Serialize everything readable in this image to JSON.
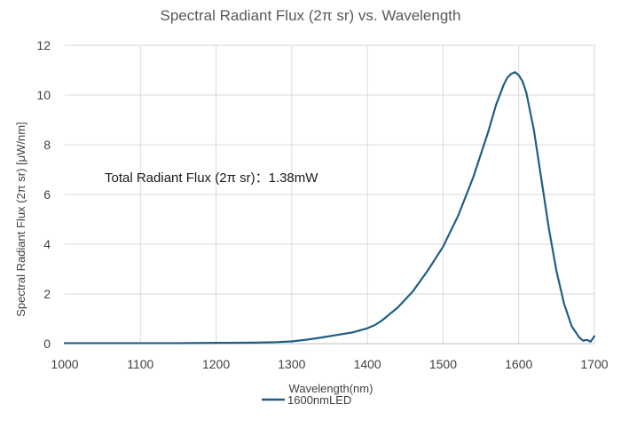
{
  "chart_data": {
    "type": "line",
    "title": "Spectral Radiant Flux (2π sr) vs. Wavelength",
    "xlabel": "Wavelength(nm)",
    "ylabel": "Spectral Radiant Flux (2π sr) [μW/nm]",
    "xlim": [
      1000,
      1700
    ],
    "ylim": [
      0,
      12
    ],
    "xticks": [
      "1000",
      "1100",
      "1200",
      "1300",
      "1400",
      "1500",
      "1600",
      "1700"
    ],
    "yticks": [
      "0",
      "2",
      "4",
      "6",
      "8",
      "10",
      "12"
    ],
    "grid": "vertical and horizontal major gridlines",
    "legend_position": "bottom",
    "annotation": "Total Radiant Flux (2π sr)：1.38mW",
    "series": [
      {
        "name": "1600nmLED",
        "color": "#1f5f86",
        "x": [
          1000,
          1050,
          1100,
          1150,
          1200,
          1250,
          1280,
          1300,
          1320,
          1340,
          1360,
          1380,
          1400,
          1410,
          1420,
          1440,
          1460,
          1480,
          1500,
          1520,
          1540,
          1560,
          1570,
          1580,
          1585,
          1590,
          1595,
          1600,
          1605,
          1610,
          1620,
          1630,
          1640,
          1650,
          1660,
          1670,
          1680,
          1685,
          1690,
          1695,
          1700
        ],
        "y": [
          0.02,
          0.02,
          0.02,
          0.02,
          0.03,
          0.04,
          0.06,
          0.09,
          0.16,
          0.25,
          0.35,
          0.45,
          0.62,
          0.75,
          0.95,
          1.45,
          2.1,
          2.95,
          3.9,
          5.15,
          6.7,
          8.55,
          9.6,
          10.4,
          10.7,
          10.85,
          10.92,
          10.8,
          10.55,
          10.1,
          8.6,
          6.6,
          4.6,
          2.9,
          1.6,
          0.7,
          0.25,
          0.12,
          0.15,
          0.08,
          0.3
        ]
      }
    ]
  }
}
